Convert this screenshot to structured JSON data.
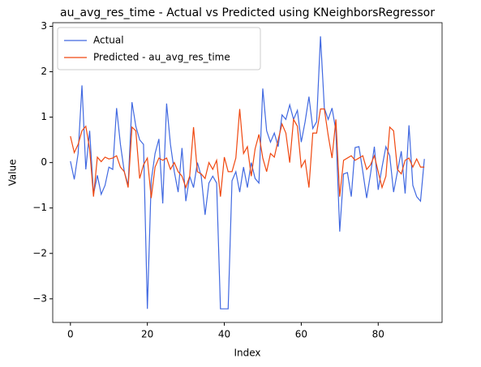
{
  "chart_data": {
    "type": "line",
    "title": "au_avg_res_time - Actual vs Predicted using KNeighborsRegressor",
    "x_label": "Index",
    "y_label": "Value",
    "x": [
      0,
      1,
      2,
      3,
      4,
      5,
      6,
      7,
      8,
      9,
      10,
      11,
      12,
      13,
      14,
      15,
      16,
      17,
      18,
      19,
      20,
      21,
      22,
      23,
      24,
      25,
      26,
      27,
      28,
      29,
      30,
      31,
      32,
      33,
      34,
      35,
      36,
      37,
      38,
      39,
      40,
      41,
      42,
      43,
      44,
      45,
      46,
      47,
      48,
      49,
      50,
      51,
      52,
      53,
      54,
      55,
      56,
      57,
      58,
      59,
      60,
      61,
      62,
      63,
      64,
      65,
      66,
      67,
      68,
      69,
      70,
      71,
      72,
      73,
      74,
      75,
      76,
      77,
      78,
      79,
      80,
      81,
      82,
      83,
      84,
      85,
      86,
      87,
      88,
      89,
      90,
      91,
      92
    ],
    "series": [
      {
        "name": "Actual",
        "color": "#4169e1",
        "values": [
          0.03,
          -0.37,
          0.2,
          1.7,
          -0.15,
          0.7,
          -0.7,
          -0.28,
          -0.7,
          -0.5,
          -0.1,
          -0.15,
          1.2,
          0.4,
          -0.2,
          -0.5,
          1.33,
          0.8,
          0.5,
          0.4,
          -3.22,
          -0.4,
          0.2,
          0.52,
          -0.9,
          1.3,
          0.4,
          -0.2,
          -0.65,
          0.32,
          -0.85,
          -0.3,
          -0.55,
          0,
          -0.3,
          -1.15,
          -0.45,
          -0.3,
          -0.45,
          -3.22,
          -3.22,
          -3.22,
          -0.4,
          -0.2,
          -0.65,
          -0.1,
          -0.55,
          0,
          -0.35,
          -0.45,
          1.63,
          0.7,
          0.45,
          0.65,
          0.35,
          1.05,
          0.95,
          1.27,
          0.95,
          1.15,
          0.45,
          0.9,
          1.45,
          0.75,
          0.9,
          2.78,
          1.2,
          0.95,
          1.2,
          0.7,
          -1.52,
          -0.25,
          -0.22,
          -0.75,
          0.33,
          0.35,
          -0.2,
          -0.78,
          -0.25,
          0.35,
          -0.6,
          -0.1,
          0.35,
          0.15,
          -0.65,
          -0.2,
          0.25,
          -0.68,
          0.82,
          -0.5,
          -0.75,
          -0.85,
          0.08
        ]
      },
      {
        "name": "Predicted - au_avg_res_time",
        "color": "#f04810",
        "values": [
          0.58,
          0.22,
          0.4,
          0.7,
          0.8,
          0.3,
          -0.75,
          0.12,
          0.02,
          0.12,
          0.08,
          0.1,
          0.15,
          -0.1,
          -0.2,
          -0.55,
          0.78,
          0.7,
          -0.35,
          -0.05,
          0.1,
          -0.78,
          -0.1,
          0.1,
          0.05,
          0.1,
          -0.15,
          0,
          -0.2,
          -0.3,
          -0.55,
          -0.3,
          0.78,
          -0.2,
          -0.25,
          -0.35,
          0,
          -0.15,
          0.05,
          -0.75,
          0.12,
          -0.2,
          -0.2,
          0.1,
          1.18,
          0.2,
          0.35,
          -0.3,
          0.3,
          0.62,
          0.1,
          -0.2,
          0.2,
          0.12,
          0.5,
          0.85,
          0.65,
          0,
          0.95,
          0.8,
          -0.1,
          0.05,
          -0.55,
          0.65,
          0.65,
          1.18,
          1.18,
          0.6,
          0.1,
          0.95,
          -0.75,
          0.05,
          0.1,
          0.15,
          0.05,
          0.1,
          0.15,
          -0.15,
          -0.05,
          0.15,
          -0.2,
          -0.55,
          -0.3,
          0.78,
          0.7,
          -0.15,
          -0.25,
          0.05,
          0.1,
          -0.1,
          0.08,
          -0.1,
          -0.1
        ]
      }
    ],
    "xlim": [
      -4.6,
      96.6
    ],
    "xticks": [
      0,
      20,
      40,
      60,
      80
    ],
    "ylim": [
      -3.52,
      3.08
    ],
    "yticks": [
      {
        "value": -3,
        "label": "−3"
      },
      {
        "value": -2,
        "label": "−2"
      },
      {
        "value": -1,
        "label": "−1"
      },
      0,
      1,
      2,
      3
    ],
    "legend": "upper left",
    "grid": false
  }
}
